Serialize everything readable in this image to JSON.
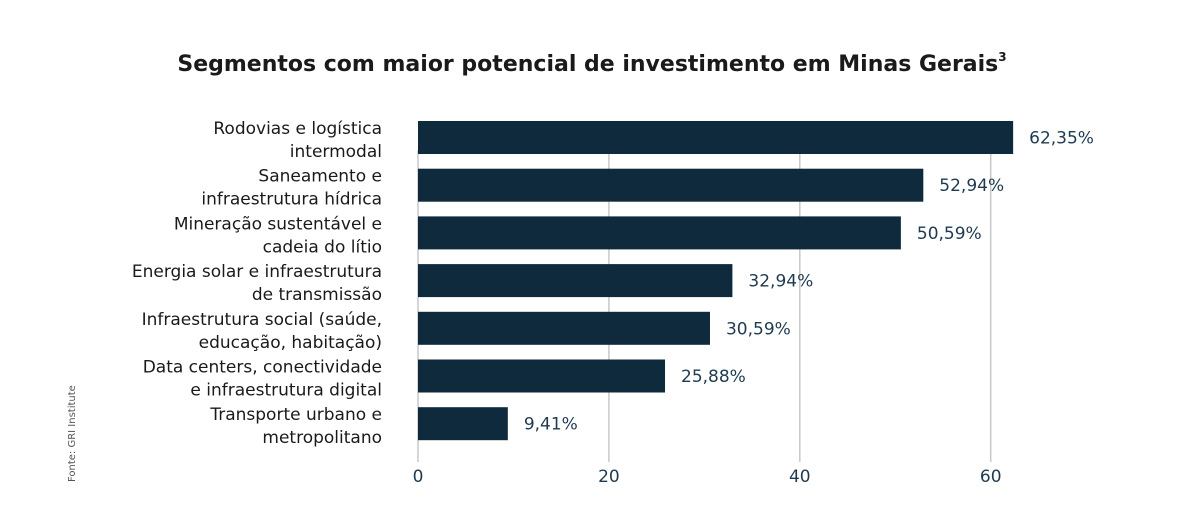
{
  "source_note": "Fonte: GRI Institute",
  "colors": {
    "bar": "#0f2a3d",
    "grid": "#c8c8c8",
    "text": "#1a1a1a",
    "value_text": "#1f3a50"
  },
  "chart_data": {
    "type": "bar",
    "orientation": "horizontal",
    "title": "Segmentos com maior potencial de investimento em Minas Gerais",
    "title_superscript": "3",
    "categories": [
      [
        "Rodovias e logística",
        "intermodal"
      ],
      [
        "Saneamento e",
        "infraestrutura hídrica"
      ],
      [
        "Mineração sustentável e",
        "cadeia do lítio"
      ],
      [
        "Energia solar e infraestrutura",
        "de transmissão"
      ],
      [
        "Infraestrutura social (saúde,",
        "educação, habitação)"
      ],
      [
        "Data centers, conectividade",
        "e infraestrutura digital"
      ],
      [
        "Transporte urbano e",
        "metropolitano"
      ]
    ],
    "values": [
      62.35,
      52.94,
      50.59,
      32.94,
      30.59,
      25.88,
      9.41
    ],
    "value_labels": [
      "62,35%",
      "52,94%",
      "50,59%",
      "32,94%",
      "30,59%",
      "25,88%",
      "9,41%"
    ],
    "xticks": [
      "0",
      "20",
      "40",
      "60"
    ],
    "xtick_values": [
      0,
      20,
      40,
      60
    ],
    "xlim": [
      0,
      62.35
    ],
    "grid": "vertical",
    "legend": "none"
  }
}
